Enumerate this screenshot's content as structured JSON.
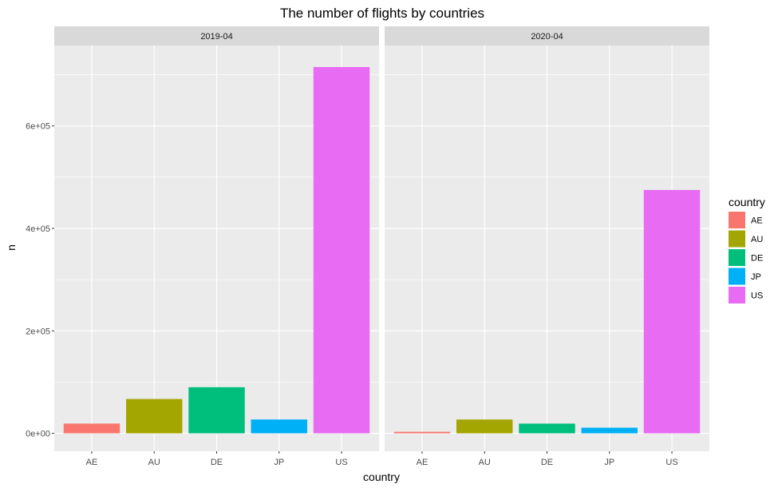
{
  "chart_data": {
    "type": "bar",
    "title": "The number of flights by countries",
    "xlabel": "country",
    "ylabel": "n",
    "categories": [
      "AE",
      "AU",
      "DE",
      "JP",
      "US"
    ],
    "ylim": [
      -35000,
      757000
    ],
    "y_ticks": [
      0,
      200000,
      400000,
      600000
    ],
    "y_tick_labels": [
      "0e+00",
      "2e+05",
      "4e+05",
      "6e+05"
    ],
    "grid": true,
    "facets": [
      {
        "label": "2019-04",
        "values": [
          19000,
          67000,
          90000,
          27000,
          715000
        ]
      },
      {
        "label": "2020-04",
        "values": [
          3000,
          27000,
          19000,
          11000,
          475000
        ]
      }
    ],
    "legend": {
      "title": "country",
      "position": "right",
      "entries": [
        "AE",
        "AU",
        "DE",
        "JP",
        "US"
      ]
    },
    "colors": {
      "AE": "#F8766D",
      "AU": "#A3A500",
      "DE": "#00BF7D",
      "JP": "#00B0F6",
      "US": "#E76BF3"
    },
    "panel_background": "#EBEBEB",
    "strip_background": "#D9D9D9"
  }
}
